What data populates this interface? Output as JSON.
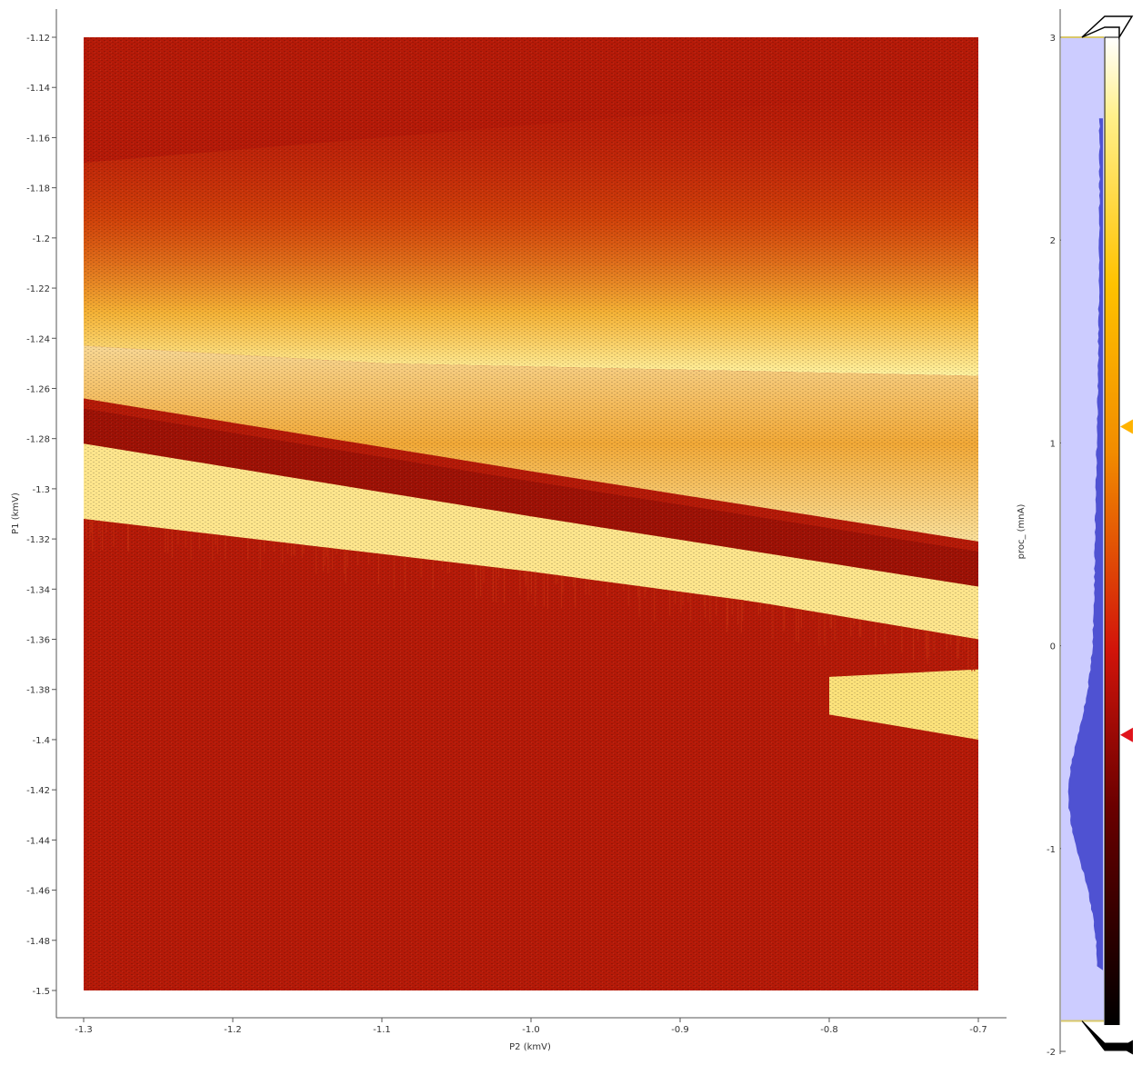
{
  "chart_data": {
    "type": "heatmap",
    "title": "",
    "xlabel": "P2 (kmV)",
    "ylabel": "P1 (kmV)",
    "x_range": [
      -1.3,
      -0.7
    ],
    "y_range": [
      -1.5,
      -1.12
    ],
    "x_ticks": [
      "-1.3",
      "-1.2",
      "-1.1",
      "-1.0",
      "-0.9",
      "-0.8",
      "-0.7"
    ],
    "x_tick_values": [
      -1.3,
      -1.2,
      -1.1,
      -1.0,
      -0.9,
      -0.8,
      -0.7
    ],
    "y_ticks": [
      "-1.12",
      "-1.14",
      "-1.16",
      "-1.18",
      "-1.2",
      "-1.22",
      "-1.24",
      "-1.26",
      "-1.28",
      "-1.3",
      "-1.32",
      "-1.34",
      "-1.36",
      "-1.38",
      "-1.4",
      "-1.42",
      "-1.44",
      "-1.46",
      "-1.48",
      "-1.5"
    ],
    "y_tick_values": [
      -1.12,
      -1.14,
      -1.16,
      -1.18,
      -1.2,
      -1.22,
      -1.24,
      -1.26,
      -1.28,
      -1.3,
      -1.32,
      -1.34,
      -1.36,
      -1.38,
      -1.4,
      -1.42,
      -1.44,
      -1.46,
      -1.48,
      -1.5
    ],
    "colormap": "hot",
    "colorbar": {
      "label": "proc_ (mnA)",
      "range": [
        -2,
        3
      ],
      "ticks": [
        "3",
        "2",
        "1",
        "0",
        "-1",
        "-2"
      ],
      "tick_values": [
        3,
        2,
        1,
        0,
        -1,
        -2
      ],
      "level_high": 3.0,
      "level_low": -1.85,
      "markers": [
        {
          "value": 1.08,
          "color": "#ffb300"
        },
        {
          "value": -0.44,
          "color": "#e0141c"
        },
        {
          "value": -1.98,
          "color": "#000000"
        }
      ]
    },
    "features": {
      "upper_glow_edge": {
        "x": [
          -1.3,
          -1.1,
          -0.7
        ],
        "y": [
          -1.243,
          -1.25,
          -1.255
        ]
      },
      "main_band_top": {
        "x": [
          -1.3,
          -1.0,
          -0.7
        ],
        "y": [
          -1.268,
          -1.297,
          -1.325
        ]
      },
      "main_band_bottom": {
        "x": [
          -1.3,
          -1.0,
          -0.85,
          -0.7
        ],
        "y": [
          -1.312,
          -1.333,
          -1.345,
          -1.36
        ]
      },
      "lower_band": {
        "x_start": -0.8,
        "x_end": -0.7,
        "y_top": -1.375,
        "y_bottom": -1.4
      }
    }
  },
  "colors": {
    "background": "#ffffff",
    "axis": "#555555",
    "histogram_fill_light": "#ccccff",
    "histogram_fill_dark": "#4f52d2",
    "gradient_top": "#ffffff",
    "gradient_mid_yellow": "#ffdc3a",
    "gradient_mid_orange": "#f28c00",
    "gradient_mid_red": "#d2140a",
    "gradient_bottom": "#000000"
  }
}
